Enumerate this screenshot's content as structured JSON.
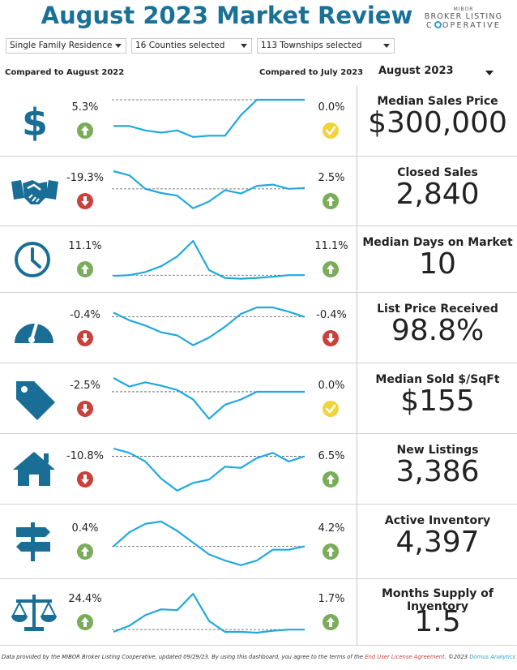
{
  "header": {
    "title": "August 2023 Market Review",
    "logo": {
      "top": "MIBOR",
      "line1": "BROKER LISTING",
      "line2_pre": "C",
      "line2_post": "OPERATIVE"
    }
  },
  "filters": {
    "property_type": "Single Family Residence",
    "counties": "16 Counties selected",
    "townships": "113 Townships selected"
  },
  "comparisons": {
    "left": "Compared to August 2022",
    "right": "Compared to July 2023"
  },
  "month_selector": {
    "value": "August 2023"
  },
  "colors": {
    "title": "#1a7196",
    "line": "#1fa9dc",
    "up": "#7aac5a",
    "down": "#c8423c",
    "neutral": "#f0d43a"
  },
  "metrics": [
    {
      "label": "Median Sales Price",
      "value": "$300,000",
      "yoy": "5.3%",
      "yoy_dir": "up",
      "mom": "0.0%",
      "mom_dir": "neutral",
      "icon": "dollar-icon",
      "trend": [
        0.4,
        0.4,
        0.3,
        0.25,
        0.3,
        0.15,
        0.18,
        0.18,
        0.65,
        1,
        1,
        1,
        1
      ],
      "baseline": 1
    },
    {
      "label": "Closed Sales",
      "value": "2,840",
      "yoy": "-19.3%",
      "yoy_dir": "down",
      "mom": "2.5%",
      "mom_dir": "up",
      "icon": "handshake-icon",
      "trend": [
        1,
        0.9,
        0.58,
        0.48,
        0.42,
        0.12,
        0.28,
        0.55,
        0.47,
        0.65,
        0.68,
        0.58,
        0.6
      ],
      "baseline": 0.58
    },
    {
      "label": "Median Days on Market",
      "value": "10",
      "yoy": "11.1%",
      "yoy_dir": "up",
      "mom": "11.1%",
      "mom_dir": "up",
      "icon": "clock-icon",
      "trend": [
        0.1,
        0.12,
        0.2,
        0.35,
        0.6,
        1,
        0.25,
        0.05,
        0.03,
        0.05,
        0.08,
        0.12,
        0.12
      ],
      "baseline": 0.12
    },
    {
      "label": "List Price Received",
      "value": "98.8%",
      "yoy": "-0.4%",
      "yoy_dir": "down",
      "mom": "-0.4%",
      "mom_dir": "down",
      "icon": "gauge-icon",
      "trend": [
        0.88,
        0.7,
        0.58,
        0.42,
        0.35,
        0.12,
        0.3,
        0.55,
        0.85,
        1,
        1,
        0.9,
        0.78
      ],
      "baseline": 0.78
    },
    {
      "label": "Median Sold $/SqFt",
      "value": "$155",
      "yoy": "-2.5%",
      "yoy_dir": "down",
      "mom": "0.0%",
      "mom_dir": "neutral",
      "icon": "price-tag-icon",
      "trend": [
        1,
        0.8,
        0.9,
        0.82,
        0.72,
        0.5,
        0.05,
        0.38,
        0.5,
        0.68,
        0.68,
        0.68,
        0.68
      ],
      "baseline": 0.68
    },
    {
      "label": "New Listings",
      "value": "3,386",
      "yoy": "-10.8%",
      "yoy_dir": "down",
      "mom": "6.5%",
      "mom_dir": "up",
      "icon": "house-icon",
      "trend": [
        1,
        0.9,
        0.7,
        0.3,
        0.02,
        0.2,
        0.28,
        0.58,
        0.55,
        0.78,
        0.9,
        0.7,
        0.82
      ],
      "baseline": 0.82
    },
    {
      "label": "Active Inventory",
      "value": "4,397",
      "yoy": "0.4%",
      "yoy_dir": "up",
      "mom": "4.2%",
      "mom_dir": "up",
      "icon": "signpost-icon",
      "trend": [
        0.42,
        0.72,
        0.9,
        0.95,
        0.75,
        0.5,
        0.25,
        0.12,
        0.02,
        0.12,
        0.35,
        0.35,
        0.42
      ],
      "baseline": 0.42
    },
    {
      "label": "Months Supply of Inventory",
      "value": "1.5",
      "yoy": "24.4%",
      "yoy_dir": "up",
      "mom": "1.7%",
      "mom_dir": "up",
      "icon": "scales-icon",
      "trend": [
        0.02,
        0.18,
        0.45,
        0.6,
        0.58,
        1,
        0.3,
        0.02,
        0.02,
        0,
        0.05,
        0.08,
        0.08
      ],
      "baseline": 0.08
    }
  ],
  "footer": {
    "text": "Data provided by the MIBOR Broker Listing Cooperative, updated 09/29/23.  By using this dashboard, you agree to the terms of the ",
    "link": "End User License Agreement.",
    "copyright": "  ©2023 ",
    "brand": "Domus Analytics"
  }
}
